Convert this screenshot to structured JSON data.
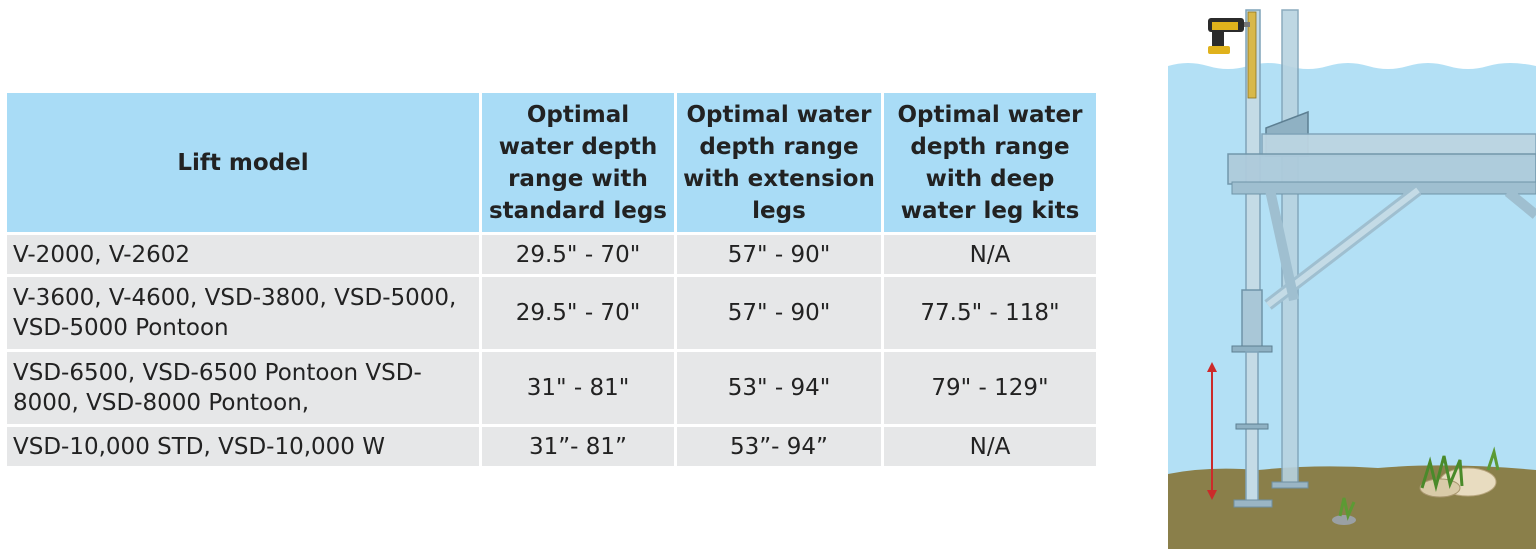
{
  "table": {
    "headers": [
      "Lift model",
      "Optimal water depth range with standard legs",
      "Optimal water depth range with extension legs",
      "Optimal water depth range with deep water leg kits"
    ],
    "rows": [
      {
        "model": "V-2000, V-2602",
        "standard": "29.5\" - 70\"",
        "extension": "57\" - 90\"",
        "deep": "N/A"
      },
      {
        "model": "V-3600,  V-4600, VSD-3800, VSD-5000, VSD-5000 Pontoon",
        "standard": "29.5\" - 70\"",
        "extension": "57\" - 90\"",
        "deep": "77.5\" - 118\""
      },
      {
        "model": "VSD-6500, VSD-6500 Pontoon VSD-8000, VSD-8000 Pontoon,",
        "standard": "31\" - 81\"",
        "extension": "53\" - 94\"",
        "deep": "79\" - 129\""
      },
      {
        "model": "VSD-10,000 STD,  VSD-10,000 W",
        "standard": "31”- 81”",
        "extension": "53”- 94”",
        "deep": "N/A"
      }
    ]
  },
  "colors": {
    "header_bg": "#a9dcf6",
    "row_bg": "#e6e7e8",
    "water": "#b3e0f5",
    "lakebed": "#8a7f4a",
    "measure_arrow": "#cc2a2a"
  }
}
